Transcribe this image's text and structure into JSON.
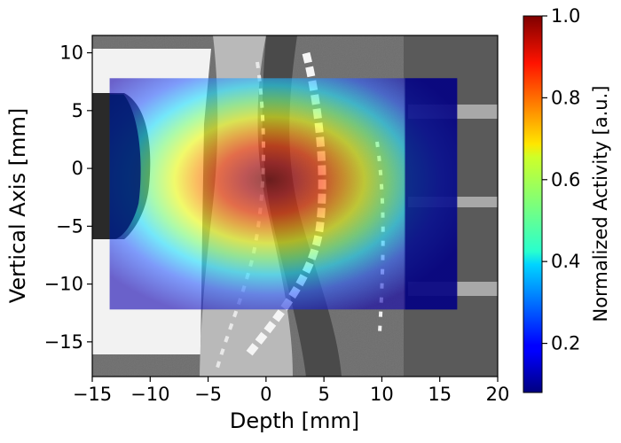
{
  "chart_data": {
    "type": "heatmap",
    "title": "",
    "xlabel": "Depth [mm]",
    "ylabel": "Vertical Axis [mm]",
    "xlim": [
      -15,
      20
    ],
    "ylim": [
      -18,
      11.5
    ],
    "x_ticks": [
      -15,
      -10,
      -5,
      0,
      5,
      10,
      15,
      20
    ],
    "x_tick_labels": [
      "−15",
      "−10",
      "−5",
      "0",
      "5",
      "10",
      "15",
      "20"
    ],
    "y_ticks": [
      -15,
      -10,
      -5,
      0,
      5,
      10
    ],
    "y_tick_labels": [
      "−15",
      "−10",
      "−5",
      "0",
      "5",
      "10"
    ],
    "grid": false,
    "colormap": "jet",
    "background": "grayscale CT image",
    "activity_overlay": {
      "extent_x": [
        -13.5,
        16.5
      ],
      "extent_y": [
        -12.2,
        7.8
      ],
      "peak_center": [
        0.5,
        -0.5
      ],
      "low_activity_region": "beyond x = 12",
      "opacity": 0.6
    },
    "colorbar": {
      "label": "Normalized Activity [a.u.]",
      "range": [
        0.08,
        1.0
      ],
      "ticks": [
        0.2,
        0.4,
        0.6,
        0.8,
        1.0
      ],
      "tick_labels": [
        "0.2",
        "0.4",
        "0.6",
        "0.8",
        "1.0"
      ]
    }
  }
}
